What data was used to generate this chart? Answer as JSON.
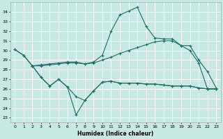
{
  "xlabel": "Humidex (Indice chaleur)",
  "xlim": [
    -0.5,
    23.5
  ],
  "ylim": [
    22.5,
    35.0
  ],
  "yticks": [
    23,
    24,
    25,
    26,
    27,
    28,
    29,
    30,
    31,
    32,
    33,
    34
  ],
  "xticks": [
    0,
    1,
    2,
    3,
    4,
    5,
    6,
    7,
    8,
    9,
    10,
    11,
    12,
    13,
    14,
    15,
    16,
    17,
    18,
    19,
    20,
    21,
    22,
    23
  ],
  "bg_color": "#c8e8e4",
  "grid_color": "#ffffff",
  "line_color": "#1a6e64",
  "series": [
    {
      "name": "max_line",
      "x": [
        0,
        1,
        2,
        3,
        4,
        5,
        6,
        7,
        8,
        9,
        10,
        11,
        12,
        13,
        14,
        15,
        16,
        17,
        18,
        19,
        20,
        21,
        22,
        23
      ],
      "y": [
        30.1,
        29.5,
        28.4,
        28.5,
        28.6,
        28.7,
        28.8,
        28.8,
        28.6,
        28.8,
        29.5,
        32.0,
        33.7,
        34.1,
        34.5,
        32.5,
        31.3,
        31.2,
        31.2,
        30.5,
        30.5,
        29.0,
        27.8,
        26.1
      ]
    },
    {
      "name": "mean_line",
      "x": [
        0,
        1,
        2,
        3,
        4,
        5,
        6,
        7,
        8,
        9,
        10,
        11,
        12,
        13,
        14,
        15,
        16,
        17,
        18,
        19,
        20,
        21,
        22,
        23
      ],
      "y": [
        30.1,
        29.5,
        28.4,
        28.4,
        28.5,
        28.6,
        28.7,
        28.7,
        28.6,
        28.7,
        29.0,
        29.3,
        29.7,
        30.0,
        30.3,
        30.6,
        30.9,
        31.0,
        31.0,
        30.5,
        30.0,
        28.7,
        26.0,
        26.0
      ]
    },
    {
      "name": "low_flat",
      "x": [
        2,
        3,
        4,
        5,
        6,
        7,
        8,
        9,
        10,
        11,
        12,
        13,
        14,
        15,
        16,
        17,
        18,
        19,
        20,
        21,
        22,
        23
      ],
      "y": [
        28.4,
        27.2,
        26.3,
        27.0,
        26.2,
        25.2,
        24.8,
        25.8,
        26.7,
        26.8,
        26.6,
        26.6,
        26.6,
        26.5,
        26.5,
        26.4,
        26.3,
        26.3,
        26.3,
        26.1,
        26.0,
        26.0
      ]
    },
    {
      "name": "low_dip",
      "x": [
        2,
        3,
        4,
        5,
        6,
        7,
        8,
        9,
        10,
        11,
        12,
        13,
        14,
        15,
        16,
        17,
        18,
        19,
        20,
        21,
        22,
        23
      ],
      "y": [
        28.4,
        27.2,
        26.3,
        27.0,
        26.2,
        23.3,
        24.8,
        25.8,
        26.7,
        26.8,
        26.6,
        26.6,
        26.6,
        26.5,
        26.5,
        26.4,
        26.3,
        26.3,
        26.3,
        26.1,
        26.0,
        26.0
      ]
    }
  ]
}
